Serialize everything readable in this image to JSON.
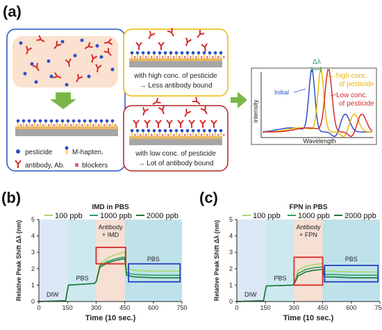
{
  "panel_a": {
    "label": "(a)",
    "legend": {
      "pesticide": "pesticide",
      "m_hapten": "M-hapten.",
      "antibody": "antibody, Ab.",
      "blockers": "blockers"
    },
    "high_box": {
      "line1": "with high conc. of pesticide",
      "line2": "→ Less antibody bound"
    },
    "low_box": {
      "line1": "with low conc. of pesticide",
      "line2": "→ Lot of antibody bound"
    },
    "spectrum": {
      "delta": "Δλ",
      "initial": "Initial",
      "high1": "high conc.",
      "high2": "of pesticide",
      "low1": "Low conc.",
      "low2": "of pesticide",
      "ylabel": "intensity",
      "xlabel": "Wavelength"
    },
    "colors": {
      "blue": "#2b4fc8",
      "yellow": "#e8b800",
      "red": "#d42a2a",
      "green": "#7ab648"
    }
  },
  "chart_data": [
    {
      "label": "(b)",
      "type": "line",
      "title": "IMD in PBS",
      "xlabel": "Time (10 sec.)",
      "ylabel": "Relative Peak Shift Δλ (nm)",
      "xlim": [
        0,
        750
      ],
      "ylim": [
        0,
        5
      ],
      "xticks": [
        "0",
        "150",
        "300",
        "450",
        "600",
        "750"
      ],
      "yticks": [
        "0",
        "1",
        "2",
        "3",
        "4",
        "5"
      ],
      "regions": [
        {
          "label": "DIW",
          "from": 0,
          "to": 150,
          "color": "#dce8f5"
        },
        {
          "label": "PBS",
          "from": 150,
          "to": 300,
          "color": "#cde9ef"
        },
        {
          "label_line1": "Antibody",
          "label_line2": "+ IMD",
          "from": 300,
          "to": 450,
          "color": "#f6dfd3"
        },
        {
          "label": "PBS",
          "from": 450,
          "to": 750,
          "color": "#bfe2ea"
        }
      ],
      "region_labels": {
        "diw": "DIW",
        "pbs1": "PBS",
        "ab1": "Antibody",
        "ab2": "+ IMD",
        "pbs2": "PBS"
      },
      "series": [
        {
          "name": "100 ppb",
          "color": "#a6d96a",
          "x": [
            0,
            140,
            150,
            155,
            290,
            300,
            320,
            360,
            400,
            440,
            450,
            460,
            500,
            600,
            740
          ],
          "y": [
            0,
            0.05,
            0.7,
            1.0,
            1.1,
            1.2,
            2.3,
            2.65,
            2.85,
            3.0,
            3.0,
            2.0,
            1.9,
            1.85,
            1.85
          ]
        },
        {
          "name": "1000 ppb",
          "color": "#2ca25f",
          "x": [
            0,
            140,
            150,
            155,
            290,
            300,
            320,
            360,
            400,
            440,
            450,
            460,
            500,
            600,
            740
          ],
          "y": [
            0,
            0.05,
            0.7,
            1.0,
            1.1,
            1.2,
            2.2,
            2.45,
            2.6,
            2.7,
            2.7,
            1.75,
            1.65,
            1.6,
            1.6
          ]
        },
        {
          "name": "2000 ppb",
          "color": "#1a7a3a",
          "x": [
            0,
            140,
            150,
            155,
            290,
            300,
            320,
            360,
            400,
            440,
            450,
            460,
            500,
            600,
            740
          ],
          "y": [
            0,
            0.05,
            0.7,
            1.0,
            1.1,
            1.2,
            2.1,
            2.35,
            2.5,
            2.6,
            2.6,
            1.6,
            1.5,
            1.45,
            1.45
          ]
        }
      ],
      "highlight_boxes": [
        {
          "color": "#d42a2a",
          "x0": 300,
          "x1": 455,
          "y0": 2.3,
          "y1": 3.3
        },
        {
          "color": "#2040c0",
          "x0": 470,
          "x1": 740,
          "y0": 1.2,
          "y1": 2.3
        }
      ]
    },
    {
      "label": "(c)",
      "type": "line",
      "title": "FPN in PBS",
      "xlabel": "Time (10 sec.)",
      "ylabel": "Relative Peak Shift Δλ (nm)",
      "xlim": [
        0,
        750
      ],
      "ylim": [
        0,
        5
      ],
      "xticks": [
        "0",
        "150",
        "300",
        "450",
        "600",
        "750"
      ],
      "yticks": [
        "0",
        "1",
        "2",
        "3",
        "4",
        "5"
      ],
      "regions": [
        {
          "label": "DIW",
          "from": 0,
          "to": 150,
          "color": "#dce8f5"
        },
        {
          "label": "PBS",
          "from": 150,
          "to": 300,
          "color": "#cde9ef"
        },
        {
          "label_line1": "Antibody",
          "label_line2": "+ FPN",
          "from": 300,
          "to": 450,
          "color": "#f6dfd3"
        },
        {
          "label": "PBS",
          "from": 450,
          "to": 750,
          "color": "#bfe2ea"
        }
      ],
      "region_labels": {
        "diw": "DIW",
        "pbs1": "PBS",
        "ab1": "Antibody",
        "ab2": "+ FPN",
        "pbs2": "PBS"
      },
      "series": [
        {
          "name": "100 ppb",
          "color": "#a6d96a",
          "x": [
            0,
            140,
            150,
            155,
            290,
            300,
            320,
            360,
            400,
            440,
            450,
            460,
            500,
            600,
            740
          ],
          "y": [
            0,
            0.05,
            0.7,
            0.95,
            1.0,
            1.05,
            1.9,
            2.15,
            2.25,
            2.3,
            2.3,
            1.85,
            1.85,
            1.8,
            1.8
          ]
        },
        {
          "name": "1000 ppb",
          "color": "#2ca25f",
          "x": [
            0,
            140,
            150,
            155,
            290,
            300,
            320,
            360,
            400,
            440,
            450,
            460,
            500,
            600,
            740
          ],
          "y": [
            0,
            0.05,
            0.7,
            0.95,
            1.0,
            1.05,
            1.7,
            1.95,
            2.05,
            2.1,
            2.1,
            1.65,
            1.65,
            1.6,
            1.6
          ]
        },
        {
          "name": "2000 ppb",
          "color": "#1a7a3a",
          "x": [
            0,
            140,
            150,
            155,
            290,
            300,
            320,
            360,
            400,
            440,
            450,
            460,
            500,
            600,
            740
          ],
          "y": [
            0,
            0.05,
            0.7,
            0.95,
            1.0,
            1.05,
            1.55,
            1.8,
            1.9,
            1.95,
            1.95,
            1.5,
            1.5,
            1.45,
            1.45
          ]
        }
      ],
      "highlight_boxes": [
        {
          "color": "#d42a2a",
          "x0": 300,
          "x1": 450,
          "y0": 1.0,
          "y1": 2.7
        },
        {
          "color": "#2040c0",
          "x0": 460,
          "x1": 740,
          "y0": 1.2,
          "y1": 2.2
        }
      ]
    }
  ]
}
